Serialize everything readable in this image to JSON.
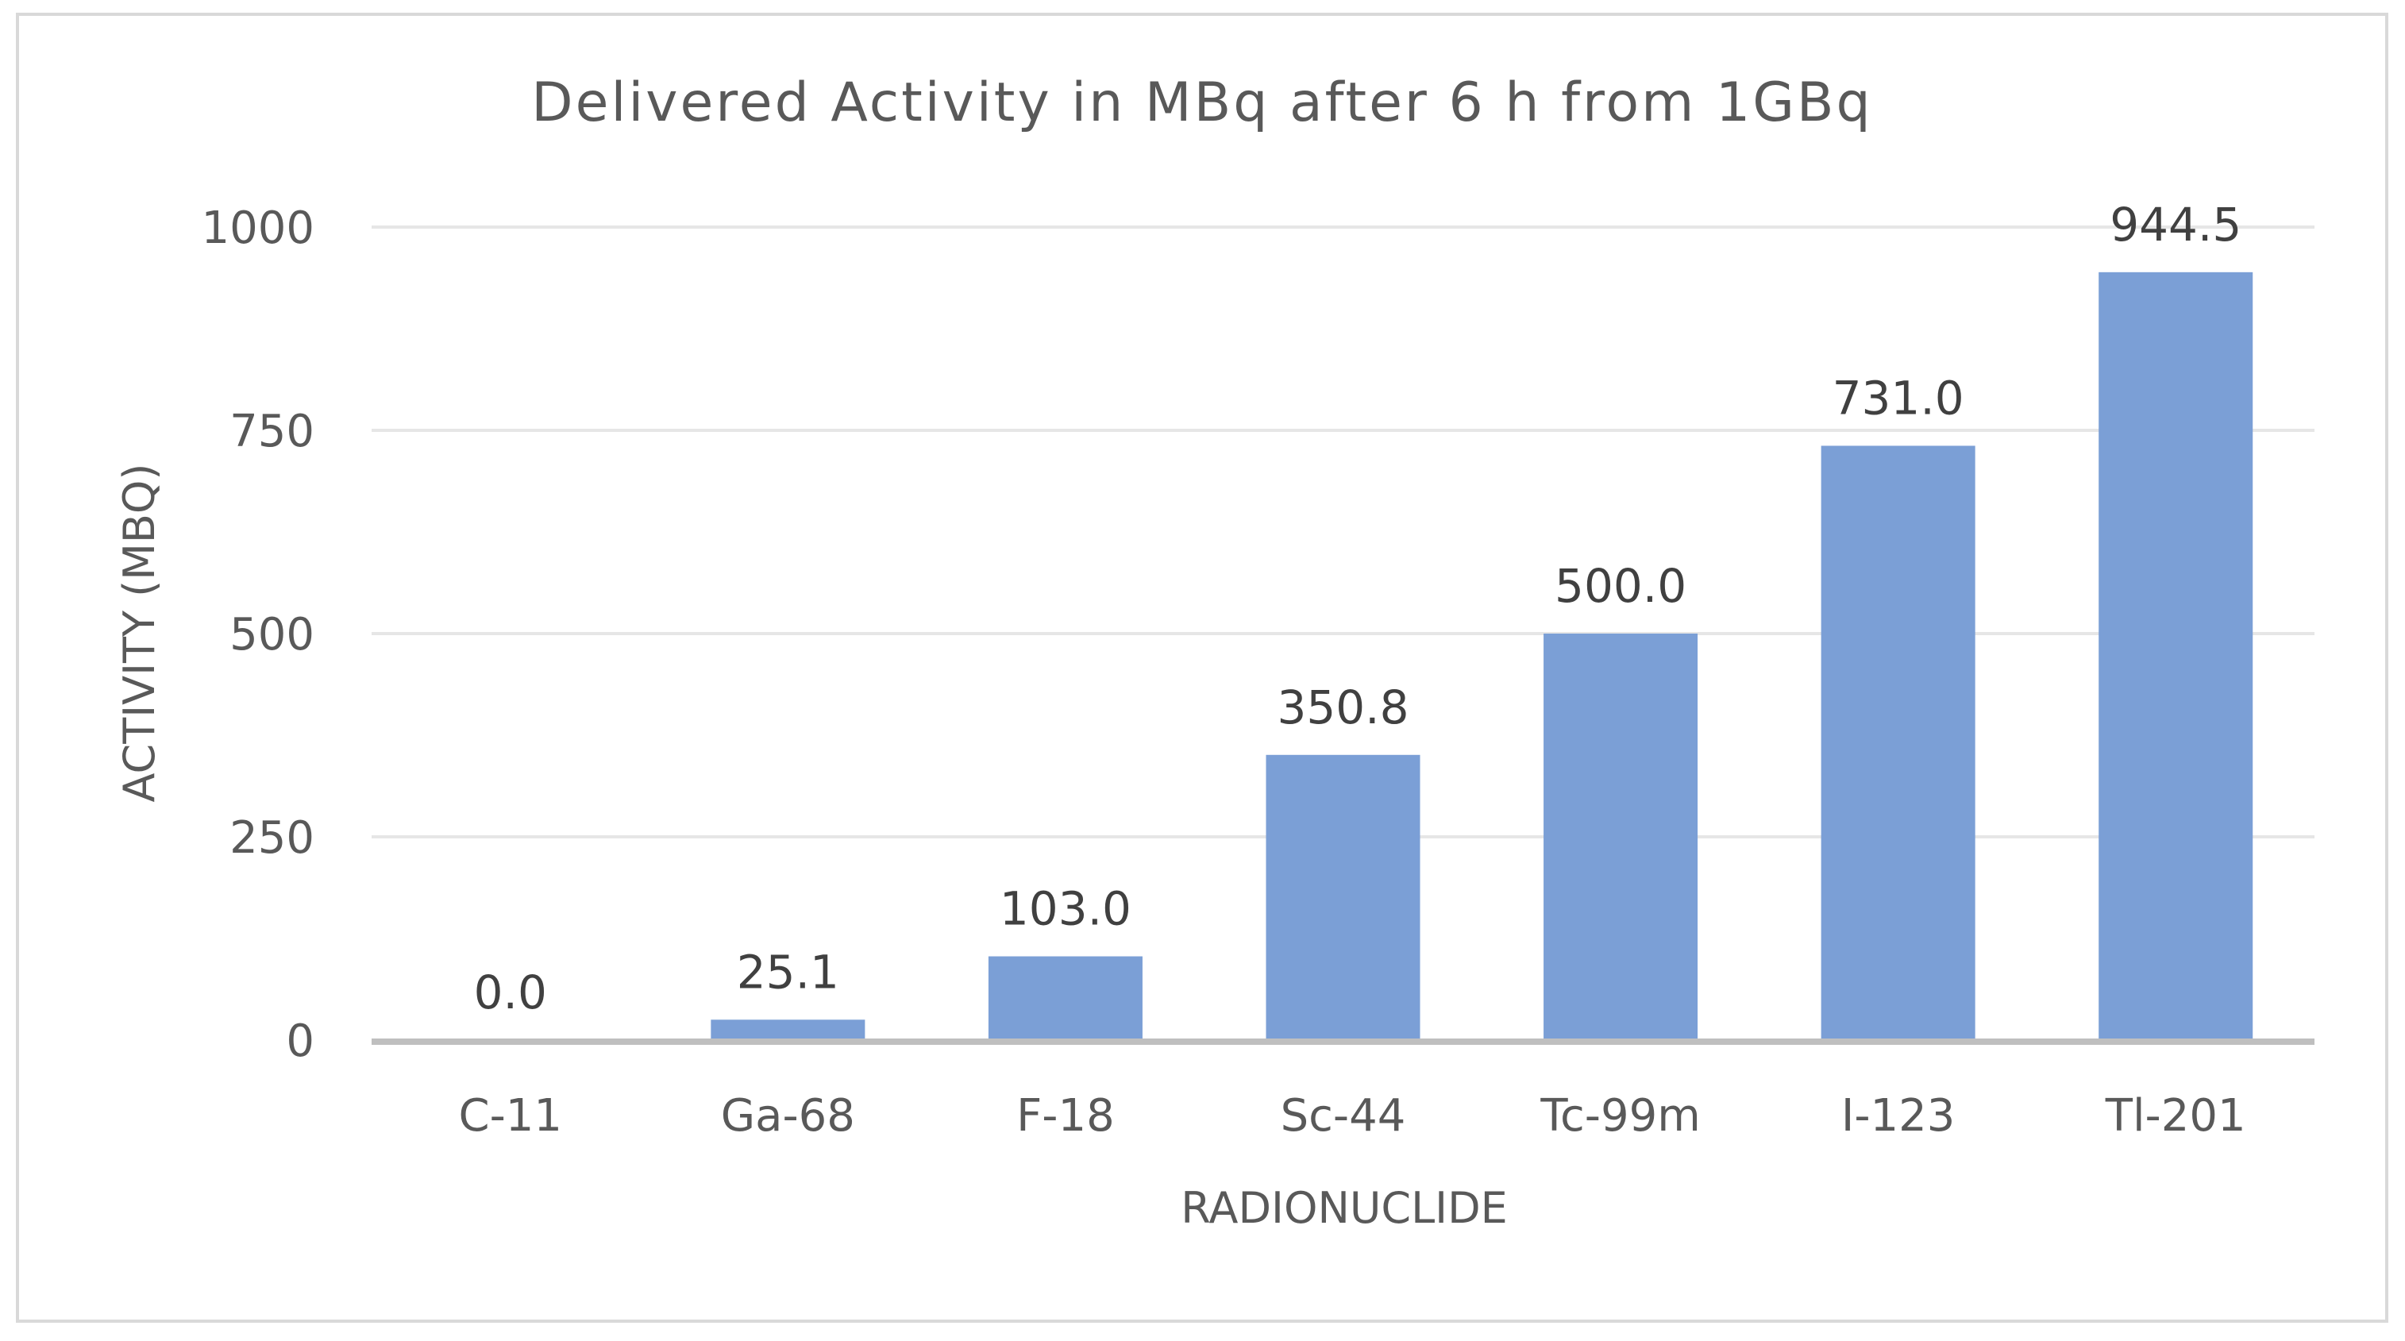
{
  "chart_data": {
    "type": "bar",
    "title": "Delivered Activity in MBq after 6 h from 1GBq",
    "xlabel": "RADIONUCLIDE",
    "ylabel": "ACTIVITY (MBQ)",
    "categories": [
      "C-11",
      "Ga-68",
      "F-18",
      "Sc-44",
      "Tc-99m",
      "I-123",
      "Tl-201"
    ],
    "values": [
      0.0,
      25.1,
      103.0,
      350.8,
      500.0,
      731.0,
      944.5
    ],
    "data_labels": [
      "0.0",
      "25.1",
      "103.0",
      "350.8",
      "500.0",
      "731.0",
      "944.5"
    ],
    "ylim": [
      0,
      1000
    ],
    "yticks": [
      0,
      250,
      500,
      750,
      1000
    ],
    "ytick_labels": [
      "0",
      "250",
      "500",
      "750",
      "1000"
    ],
    "grid": true,
    "legend": "none",
    "colors": {
      "bar": "#7b9fd6",
      "grid": "#e6e6e6",
      "axis": "#bfbfbf",
      "border": "#d9d9d9"
    }
  }
}
